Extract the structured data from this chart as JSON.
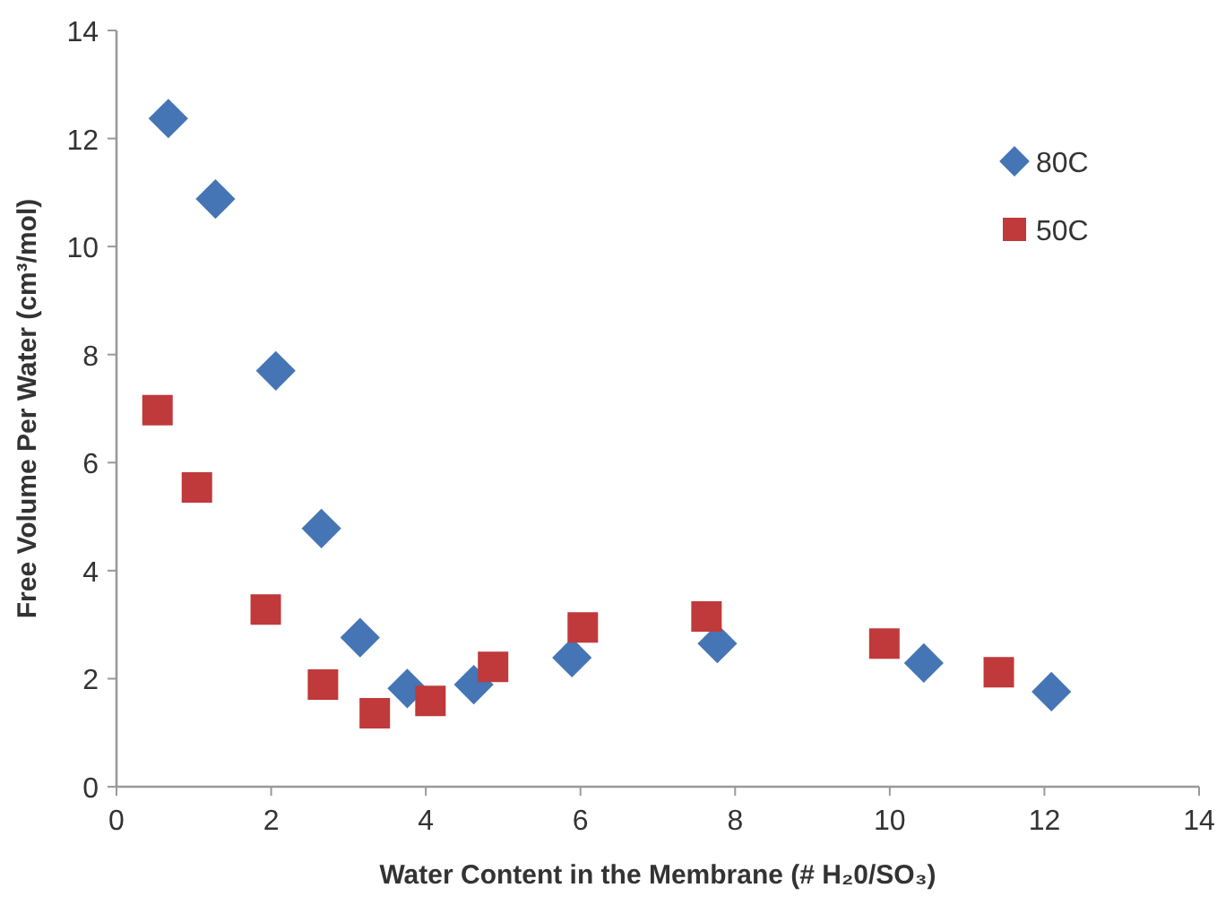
{
  "chart_data": {
    "type": "scatter",
    "xlabel": "Water Content in the Membrane (# H₂0/SO₃)",
    "ylabel": "Free Volume Per Water (cm³/mol)",
    "xlim": [
      0,
      14
    ],
    "ylim": [
      0,
      14
    ],
    "xticks": [
      0,
      2,
      4,
      6,
      8,
      10,
      12,
      14
    ],
    "yticks": [
      0,
      2,
      4,
      6,
      8,
      10,
      12,
      14
    ],
    "grid": false,
    "legend": "top right",
    "series": [
      {
        "name": "80C",
        "color": "#4575b4",
        "marker": "diamond",
        "x": [
          0.67,
          1.28,
          2.06,
          2.65,
          3.15,
          3.76,
          4.62,
          5.89,
          7.77,
          10.44,
          12.09
        ],
        "values": [
          12.37,
          10.88,
          7.7,
          4.78,
          2.76,
          1.82,
          1.89,
          2.39,
          2.65,
          2.29,
          1.76
        ]
      },
      {
        "name": "50C",
        "color": "#c0393b",
        "marker": "square",
        "x": [
          0.53,
          1.04,
          1.93,
          2.67,
          3.34,
          4.06,
          4.87,
          6.03,
          7.63,
          9.93,
          11.41
        ],
        "values": [
          6.97,
          5.54,
          3.28,
          1.89,
          1.36,
          1.59,
          2.22,
          2.95,
          3.15,
          2.65,
          2.12
        ]
      }
    ]
  }
}
